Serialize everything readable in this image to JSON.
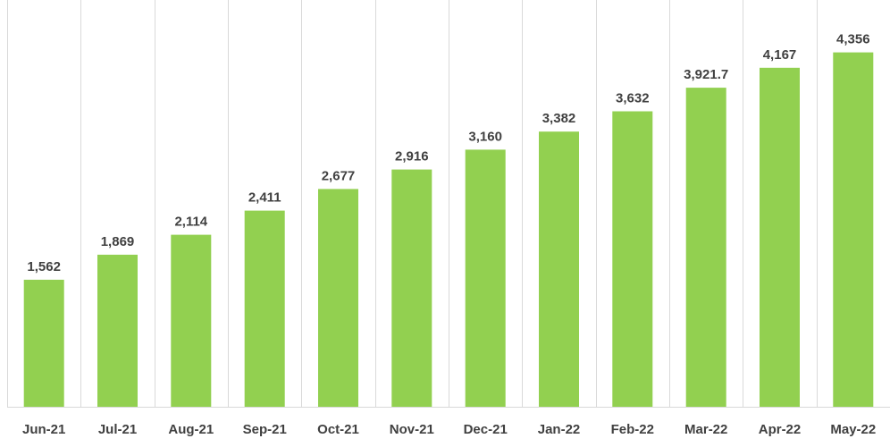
{
  "chart_data": {
    "type": "bar",
    "categories": [
      "Jun-21",
      "Jul-21",
      "Aug-21",
      "Sep-21",
      "Oct-21",
      "Nov-21",
      "Dec-21",
      "Jan-22",
      "Feb-22",
      "Mar-22",
      "Apr-22",
      "May-22"
    ],
    "values": [
      1562,
      1869,
      2114,
      2411,
      2677,
      2916,
      3160,
      3382,
      3632,
      3921.7,
      4167,
      4356
    ],
    "data_labels": [
      "1,562",
      "1,869",
      "2,114",
      "2,411",
      "2,677",
      "2,916",
      "3,160",
      "3,382",
      "3,632",
      "3,921.7",
      "4,167",
      "4,356"
    ],
    "title": "",
    "xlabel": "",
    "ylabel": "",
    "ylim": [
      0,
      5000
    ],
    "grid": "vertical separators between categories",
    "legend": "none",
    "colors": {
      "bar": "#92d050",
      "grid": "#d9d9d9",
      "text": "#404040"
    }
  }
}
